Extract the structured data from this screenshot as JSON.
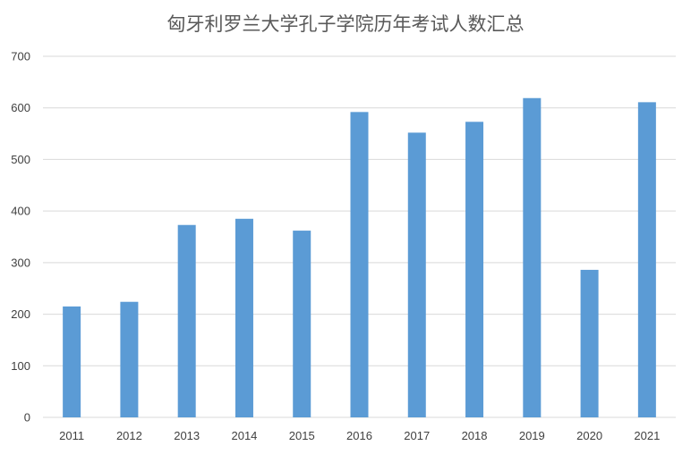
{
  "chart_data": {
    "type": "bar",
    "title": "匈牙利罗兰大学孔子学院历年考试人数汇总",
    "xlabel": "",
    "ylabel": "",
    "categories": [
      "2011",
      "2012",
      "2013",
      "2014",
      "2015",
      "2016",
      "2017",
      "2018",
      "2019",
      "2020",
      "2021"
    ],
    "values": [
      215,
      224,
      373,
      385,
      362,
      592,
      552,
      573,
      619,
      286,
      611
    ],
    "ylim": [
      0,
      700
    ],
    "yticks": [
      "0",
      "100",
      "200",
      "300",
      "400",
      "500",
      "600",
      "700"
    ],
    "grid": true,
    "legend": "none",
    "bar_color": "#5b9bd5"
  }
}
